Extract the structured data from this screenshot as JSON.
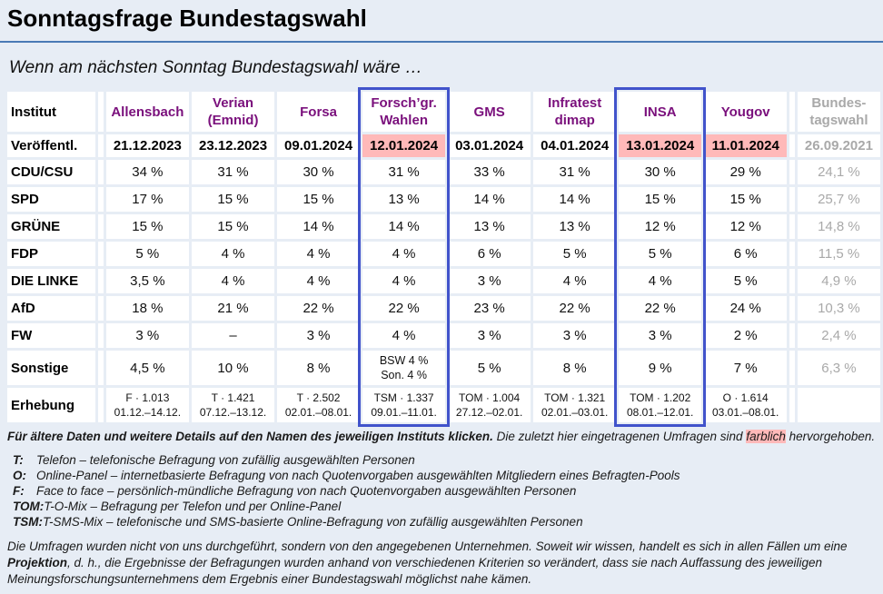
{
  "page": {
    "title": "Sonntagsfrage Bundestagswahl",
    "subtitle": "Wenn am nächsten Sonntag Bundestagswahl wäre …"
  },
  "colors": {
    "page_background": "#e7edf5",
    "cell_background": "#ffffff",
    "institute_purple": "#7a107c",
    "highlight_pink": "#ffb9b9",
    "highlight_box_blue": "#4153cb",
    "title_rule_blue": "#4a7ab5",
    "past_election_gray": "#a9a9a9"
  },
  "table": {
    "corner_label": "Institut",
    "published_label": "Veröffentl.",
    "survey_label": "Erhebung",
    "columns": [
      {
        "name_lines": [
          "Allensbach"
        ],
        "published": "21.12.2023",
        "published_highlight": false,
        "boxed": false,
        "gray": false,
        "survey_lines": [
          "F · 1.013",
          "01.12.–14.12."
        ]
      },
      {
        "name_lines": [
          "Verian",
          "(Emnid)"
        ],
        "published": "23.12.2023",
        "published_highlight": false,
        "boxed": false,
        "gray": false,
        "survey_lines": [
          "T · 1.421",
          "07.12.–13.12."
        ]
      },
      {
        "name_lines": [
          "Forsa"
        ],
        "published": "09.01.2024",
        "published_highlight": false,
        "boxed": false,
        "gray": false,
        "survey_lines": [
          "T · 2.502",
          "02.01.–08.01."
        ]
      },
      {
        "name_lines": [
          "Forsch’gr.",
          "Wahlen"
        ],
        "published": "12.01.2024",
        "published_highlight": true,
        "boxed": true,
        "gray": false,
        "survey_lines": [
          "TSM · 1.337",
          "09.01.–11.01."
        ]
      },
      {
        "name_lines": [
          "GMS"
        ],
        "published": "03.01.2024",
        "published_highlight": false,
        "boxed": false,
        "gray": false,
        "survey_lines": [
          "TOM · 1.004",
          "27.12.–02.01."
        ]
      },
      {
        "name_lines": [
          "Infratest",
          "dimap"
        ],
        "published": "04.01.2024",
        "published_highlight": false,
        "boxed": false,
        "gray": false,
        "survey_lines": [
          "TOM · 1.321",
          "02.01.–03.01."
        ]
      },
      {
        "name_lines": [
          "INSA"
        ],
        "published": "13.01.2024",
        "published_highlight": true,
        "boxed": true,
        "gray": false,
        "survey_lines": [
          "TOM · 1.202",
          "08.01.–12.01."
        ]
      },
      {
        "name_lines": [
          "Yougov"
        ],
        "published": "11.01.2024",
        "published_highlight": true,
        "boxed": false,
        "gray": false,
        "survey_lines": [
          "O · 1.614",
          "03.01.–08.01."
        ]
      },
      {
        "name_lines": [
          "Bundes-",
          "tagswahl"
        ],
        "published": "26.09.2021",
        "published_highlight": false,
        "boxed": false,
        "gray": true,
        "survey_lines": []
      }
    ],
    "rows": [
      {
        "label": "CDU/CSU",
        "values": [
          "34 %",
          "31 %",
          "30 %",
          "31 %",
          "33 %",
          "31 %",
          "30 %",
          "29 %",
          "24,1 %"
        ]
      },
      {
        "label": "SPD",
        "values": [
          "17 %",
          "15 %",
          "15 %",
          "13 %",
          "14 %",
          "14 %",
          "15 %",
          "15 %",
          "25,7 %"
        ]
      },
      {
        "label": "GRÜNE",
        "values": [
          "15 %",
          "15 %",
          "14 %",
          "14 %",
          "13 %",
          "13 %",
          "12 %",
          "12 %",
          "14,8 %"
        ]
      },
      {
        "label": "FDP",
        "values": [
          "5 %",
          "4 %",
          "4 %",
          "4 %",
          "6 %",
          "5 %",
          "5 %",
          "6 %",
          "11,5 %"
        ]
      },
      {
        "label": "DIE LINKE",
        "values": [
          "3,5 %",
          "4 %",
          "4 %",
          "4 %",
          "3 %",
          "4 %",
          "4 %",
          "5 %",
          "4,9 %"
        ]
      },
      {
        "label": "AfD",
        "values": [
          "18 %",
          "21 %",
          "22 %",
          "22 %",
          "23 %",
          "22 %",
          "22 %",
          "24 %",
          "10,3 %"
        ]
      },
      {
        "label": "FW",
        "values": [
          "3 %",
          "–",
          "3 %",
          "4 %",
          "3 %",
          "3 %",
          "3 %",
          "2 %",
          "2,4 %"
        ]
      },
      {
        "label": "Sonstige",
        "values": [
          "4,5 %",
          "10 %",
          "8 %",
          "BSW 4 %\nSon. 4 %",
          "5 %",
          "8 %",
          "9 %",
          "7 %",
          "6,3 %"
        ]
      }
    ]
  },
  "footnotes": {
    "note_bold": "Für ältere Daten und weitere Details auf den Namen des jeweiligen Instituts klicken.",
    "note_pre": " Die zuletzt hier eingetragenen Umfragen sind ",
    "note_highlight": "farblich",
    "note_post": " hervorgehoben.",
    "definitions": [
      {
        "term": "T:",
        "text": "Telefon – telefonische Befragung von zufällig ausgewählten Personen"
      },
      {
        "term": "O:",
        "text": "Online-Panel – internetbasierte Befragung von nach Quotenvorgaben ausgewählten Mitgliedern eines Befragten-Pools"
      },
      {
        "term": "F:",
        "text": "Face to face – persönlich-mündliche Befragung von nach Quotenvorgaben ausgewählten Personen"
      },
      {
        "term": "TOM:",
        "text": "T-O-Mix – Befragung per Telefon und per Online-Panel"
      },
      {
        "term": "TSM:",
        "text": "T-SMS-Mix – telefonische und SMS-basierte Online-Befragung von zufällig ausgewählten Personen"
      }
    ],
    "disclaimer_pre": "Die Umfragen wurden nicht von uns durchgeführt, sondern von den angegebenen Unternehmen. Soweit wir wissen, handelt es sich in allen Fällen um eine ",
    "disclaimer_bold": "Projektion",
    "disclaimer_post": ", d. h., die Ergebnisse der Befragungen wurden anhand von verschiedenen Kriterien so verändert, dass sie nach Auffassung des jeweiligen Meinungsforschungsunternehmens dem Ergebnis einer Bundestagswahl möglichst nahe kämen."
  }
}
